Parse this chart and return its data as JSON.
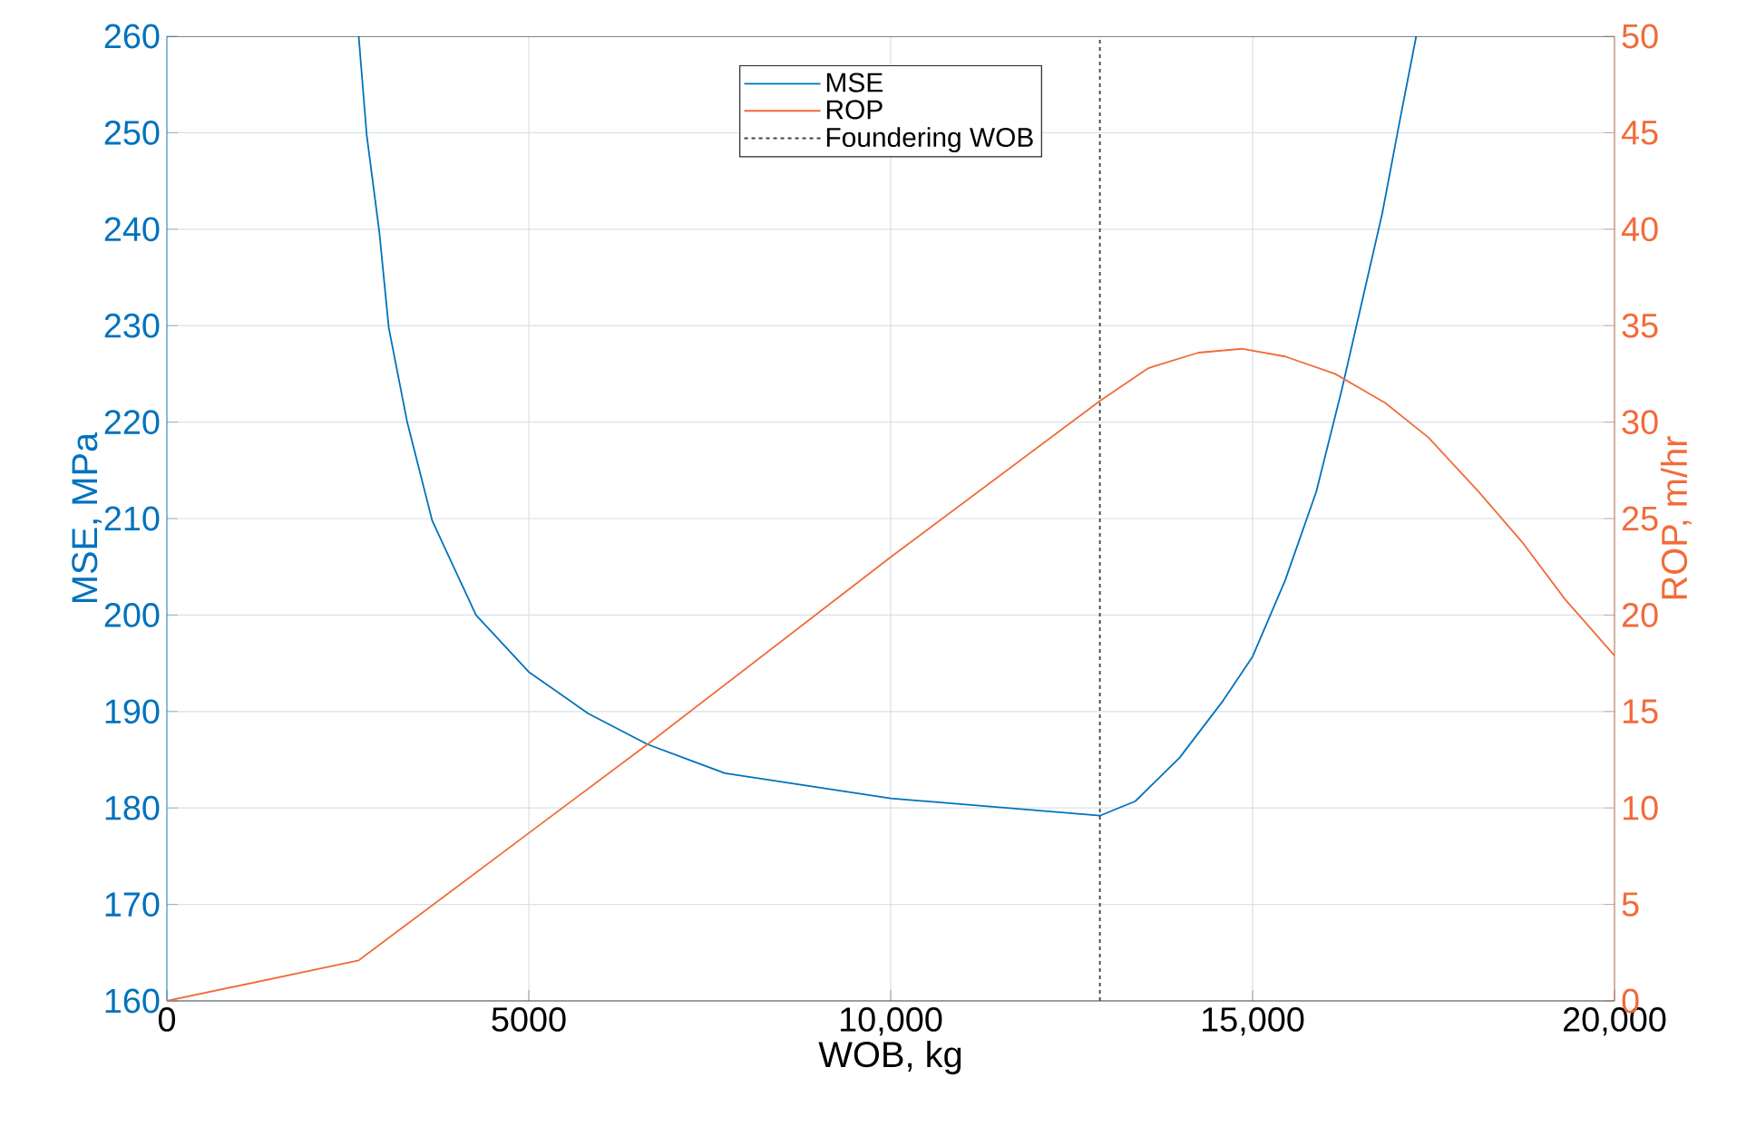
{
  "chart_data": {
    "type": "line",
    "xlabel": "WOB, kg",
    "ylabel": "MSE, MPa",
    "y2label": "ROP, m/hr",
    "xlim": [
      0,
      20000
    ],
    "xticks": [
      0,
      5000,
      {
        "value": 10000,
        "label": "10,000"
      },
      {
        "value": 15000,
        "label": "15,000"
      },
      {
        "value": 20000,
        "label": "20,000"
      }
    ],
    "ylim": [
      160,
      260
    ],
    "yticks": [
      160,
      170,
      180,
      190,
      200,
      210,
      220,
      230,
      240,
      250,
      260
    ],
    "y2lim": [
      0,
      50
    ],
    "y2ticks": [
      0,
      5,
      10,
      15,
      20,
      25,
      30,
      35,
      40,
      45,
      50
    ],
    "grid": true,
    "legend": "top",
    "marker": "none",
    "line_style": "solid",
    "series": [
      {
        "name": "MSE",
        "color": "#0072bd",
        "axis": "y",
        "x": [
          2650,
          2760,
          2935,
          3065,
          3320,
          3665,
          4270,
          5000,
          5820,
          6640,
          7710,
          10000,
          12890,
          13380,
          13990,
          14590,
          15000,
          15450,
          15880,
          16230,
          16530,
          16790,
          17040,
          17260
        ],
        "values": [
          260,
          249.8,
          239.7,
          229.8,
          220,
          209.8,
          200,
          194.1,
          189.8,
          186.6,
          183.6,
          181,
          179.2,
          180.7,
          185.2,
          191.1,
          195.7,
          203.6,
          212.8,
          223.3,
          233.1,
          241.6,
          251.5,
          260
        ]
      },
      {
        "name": "ROP",
        "color": "#f26b3a",
        "axis": "y2",
        "x": [
          0,
          2650,
          5000,
          6640,
          10000,
          12890,
          13560,
          14250,
          14850,
          15450,
          16140,
          16830,
          17430,
          18120,
          18720,
          19320,
          20000
        ],
        "values": [
          0,
          2.1,
          8.7,
          13.3,
          23,
          31.1,
          32.8,
          33.6,
          33.8,
          33.4,
          32.5,
          31,
          29.2,
          26.4,
          23.8,
          20.8,
          17.9
        ]
      }
    ],
    "ref_lines": [
      {
        "axis": "x",
        "value": 12890,
        "label": "Foundering WOB",
        "color": "#404040",
        "line_style": "dotted"
      }
    ]
  }
}
